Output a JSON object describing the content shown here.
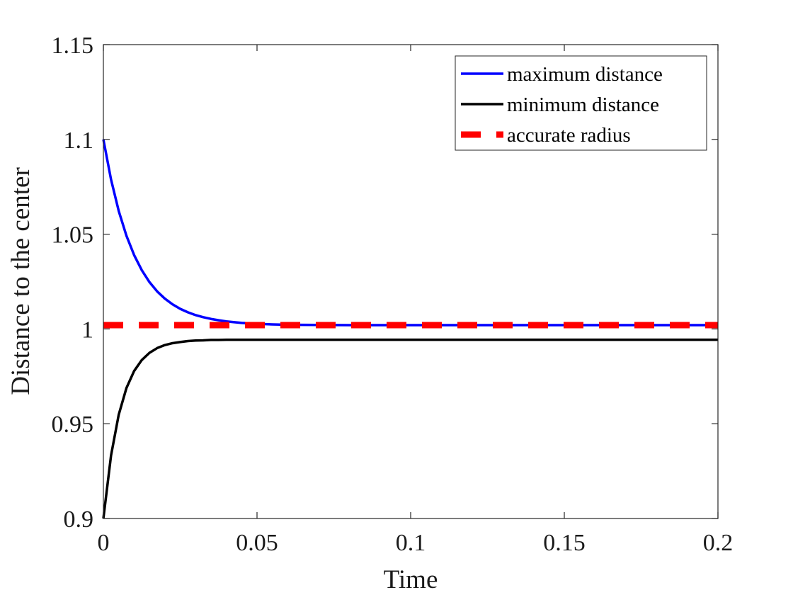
{
  "chart_data": {
    "type": "line",
    "title": "",
    "xlabel": "Time",
    "ylabel": "Distance to the center",
    "xlim": [
      0,
      0.2
    ],
    "ylim": [
      0.9,
      1.15
    ],
    "xticks": [
      0,
      0.05,
      0.1,
      0.15,
      0.2
    ],
    "xtick_labels": [
      "0",
      "0.05",
      "0.1",
      "0.15",
      "0.2"
    ],
    "yticks": [
      0.9,
      0.95,
      1,
      1.05,
      1.1,
      1.15
    ],
    "ytick_labels": [
      "0.9",
      "0.95",
      "1",
      "1.05",
      "1.1",
      "1.15"
    ],
    "grid": false,
    "legend_position": "top-right",
    "series": [
      {
        "name": "maximum distance",
        "color": "#0000ff",
        "style": "solid",
        "x": [
          0,
          0.0025,
          0.005,
          0.0075,
          0.01,
          0.0125,
          0.015,
          0.0175,
          0.02,
          0.0225,
          0.025,
          0.0275,
          0.03,
          0.0325,
          0.035,
          0.0375,
          0.04,
          0.045,
          0.05,
          0.055,
          0.06,
          0.07,
          0.08,
          0.1,
          0.125,
          0.15,
          0.175,
          0.2
        ],
        "y": [
          1.1,
          1.0788,
          1.0622,
          1.0492,
          1.039,
          1.031,
          1.0247,
          1.0198,
          1.016,
          1.013,
          1.0106,
          1.0088,
          1.0073,
          1.0062,
          1.0053,
          1.0046,
          1.004,
          1.0032,
          1.0027,
          1.0024,
          1.0022,
          1.0021,
          1.002,
          1.002,
          1.002,
          1.002,
          1.002,
          1.002
        ]
      },
      {
        "name": "minimum distance",
        "color": "#000000",
        "style": "solid",
        "x": [
          0,
          0.0025,
          0.005,
          0.0075,
          0.01,
          0.0125,
          0.015,
          0.0175,
          0.02,
          0.0225,
          0.025,
          0.0275,
          0.03,
          0.0325,
          0.035,
          0.0375,
          0.04,
          0.045,
          0.05,
          0.055,
          0.06,
          0.07,
          0.08,
          0.1,
          0.125,
          0.15,
          0.175,
          0.2
        ],
        "y": [
          0.9,
          0.9333,
          0.9548,
          0.9688,
          0.9778,
          0.9836,
          0.9874,
          0.9899,
          0.9915,
          0.9925,
          0.9931,
          0.9936,
          0.9939,
          0.994,
          0.9942,
          0.9942,
          0.9943,
          0.9943,
          0.9943,
          0.9943,
          0.9943,
          0.9943,
          0.9943,
          0.9943,
          0.9943,
          0.9943,
          0.9943,
          0.9943
        ]
      },
      {
        "name": "accurate radius",
        "color": "#ff0000",
        "style": "dashed",
        "x": [
          0,
          0.2
        ],
        "y": [
          1.002,
          1.002
        ]
      }
    ]
  }
}
